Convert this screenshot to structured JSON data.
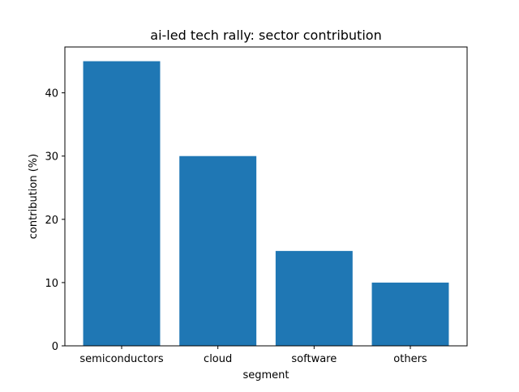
{
  "chart_data": {
    "type": "bar",
    "title": "ai-led tech rally: sector contribution",
    "xlabel": "segment",
    "ylabel": "contribution (%)",
    "categories": [
      "semiconductors",
      "cloud",
      "software",
      "others"
    ],
    "values": [
      45,
      30,
      15,
      10
    ],
    "ylim": [
      0,
      47.25
    ],
    "yticks": [
      0,
      10,
      20,
      30,
      40
    ],
    "grid": false,
    "bar_color": "#1f77b4"
  }
}
